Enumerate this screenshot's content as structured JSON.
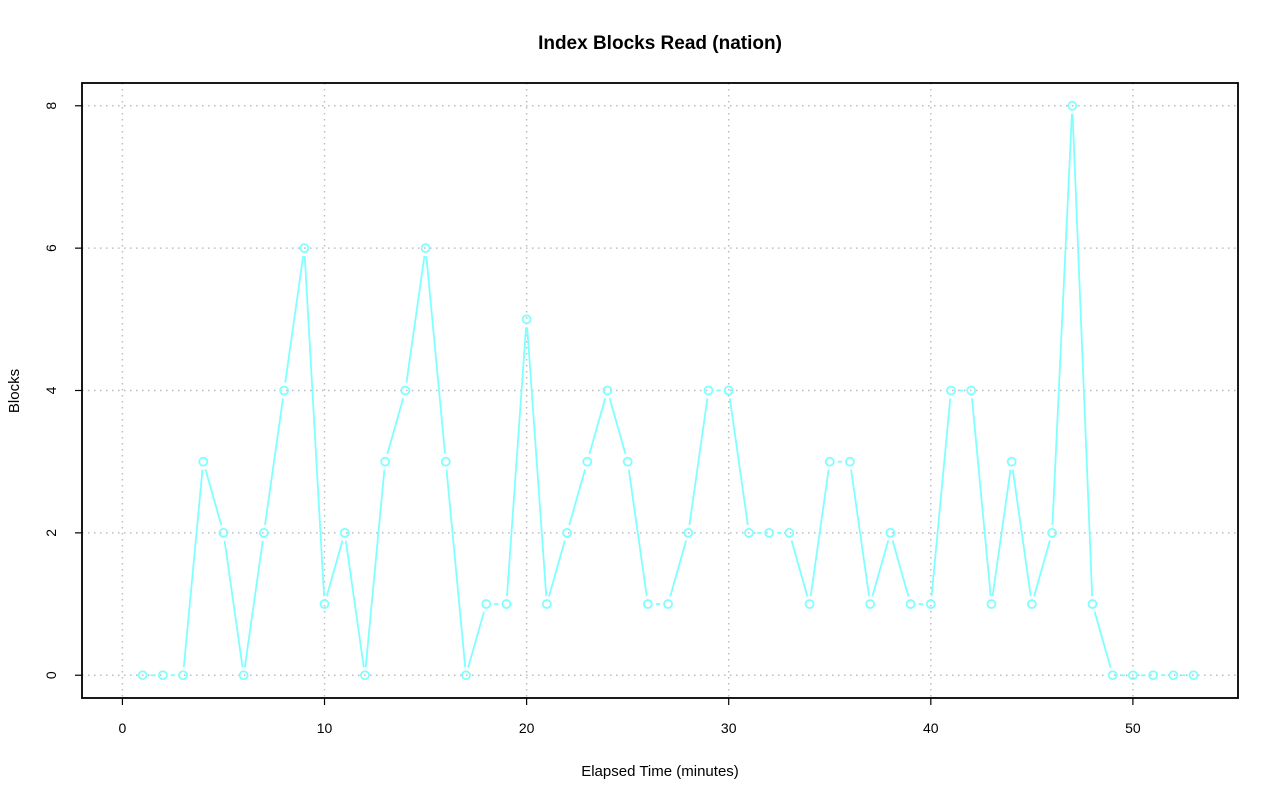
{
  "chart_data": {
    "type": "line",
    "title": "Index Blocks Read (nation)",
    "xlabel": "Elapsed Time (minutes)",
    "ylabel": "Blocks",
    "xlim": [
      -2,
      55.2
    ],
    "ylim": [
      -0.32,
      8.32
    ],
    "x_ticks": [
      0,
      10,
      20,
      30,
      40,
      50
    ],
    "y_ticks": [
      0,
      2,
      4,
      6,
      8
    ],
    "x_tick_labels": [
      "0",
      "10",
      "20",
      "30",
      "40",
      "50"
    ],
    "y_tick_labels": [
      "0",
      "2",
      "4",
      "6",
      "8"
    ],
    "grid": true,
    "marker": "open-circle",
    "series": [
      {
        "color": "#7fffff",
        "x": [
          1,
          2,
          3,
          4,
          5,
          6,
          7,
          8,
          9,
          10,
          11,
          12,
          13,
          14,
          15,
          16,
          17,
          18,
          19,
          20,
          21,
          22,
          23,
          24,
          25,
          26,
          27,
          28,
          29,
          30,
          31,
          32,
          33,
          34,
          35,
          36,
          37,
          38,
          39,
          40,
          41,
          42,
          43,
          44,
          45,
          46,
          47,
          48,
          49,
          50,
          51,
          52,
          53
        ],
        "values": [
          0,
          0,
          0,
          3,
          2,
          0,
          2,
          4,
          6,
          1,
          2,
          0,
          3,
          4,
          6,
          3,
          0,
          1,
          1,
          5,
          1,
          2,
          3,
          4,
          3,
          1,
          1,
          2,
          4,
          4,
          2,
          2,
          2,
          1,
          3,
          3,
          1,
          2,
          1,
          1,
          4,
          4,
          1,
          3,
          1,
          2,
          8,
          1,
          0,
          0,
          0,
          0,
          0
        ]
      }
    ]
  }
}
